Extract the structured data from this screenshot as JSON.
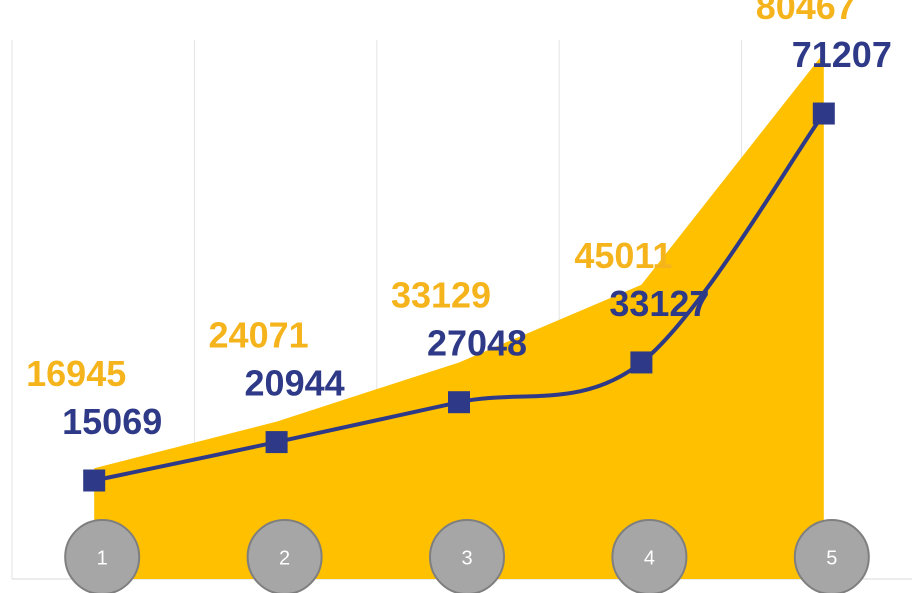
{
  "chart_data": {
    "type": "area-line",
    "categories": [
      "1",
      "2",
      "3",
      "4",
      "5"
    ],
    "series": [
      {
        "type": "area",
        "color": "#ffc000",
        "label_color": "#f5b41c",
        "values": [
          16945,
          24071,
          33129,
          45011,
          80467
        ]
      },
      {
        "type": "line",
        "color": "#2e3a87",
        "label_color": "#2e3a87",
        "values": [
          15069,
          20944,
          27048,
          33127,
          71207
        ]
      }
    ]
  }
}
